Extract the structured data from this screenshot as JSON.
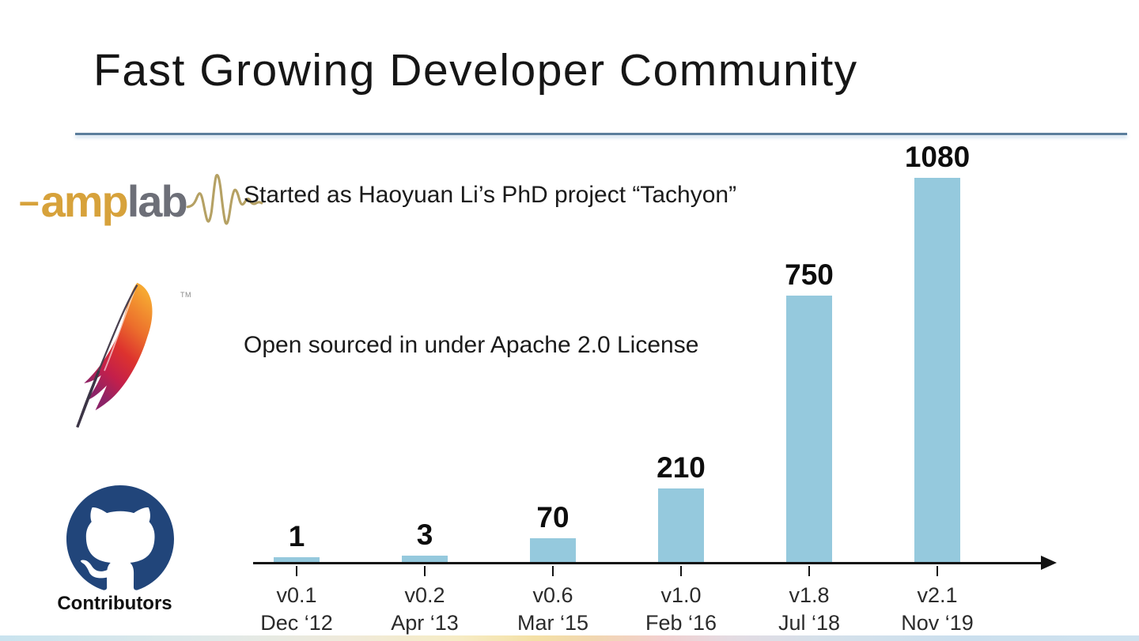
{
  "slide": {
    "title": "Fast Growing Developer Community",
    "points": [
      {
        "text": "Started as Haoyuan Li’s PhD project “Tachyon”"
      },
      {
        "text": "Open sourced in under Apache 2.0 License"
      }
    ],
    "contributors_label": "Contributors"
  },
  "logos": {
    "amplab": {
      "dash": "–",
      "amp": "amp",
      "lab": "lab"
    },
    "apache_tm": "TM"
  },
  "colors": {
    "bar": "#95c9dd",
    "divider": "#5b7e9c",
    "amp_gold": "#d7a23b",
    "lab_gray": "#6d6f78",
    "wave_gold": "#b5a164",
    "github_navy": "#21457a",
    "axis": "#131313"
  },
  "chart_data": {
    "type": "bar",
    "categories": [
      "v0.1",
      "v0.2",
      "v0.6",
      "v1.0",
      "v1.8",
      "v2.1"
    ],
    "category_sublabels": [
      "Dec ‘12",
      "Apr ‘13",
      "Mar ‘15",
      "Feb ‘16",
      "Jul ‘18",
      "Nov ‘19"
    ],
    "values": [
      1,
      3,
      70,
      210,
      750,
      1080
    ],
    "series_label": "Contributors",
    "bar_color": "#95c9dd",
    "value_labels_shown": true,
    "xlabel": "",
    "ylabel": "",
    "grid": false,
    "legend": "none",
    "axis_style": "x-axis-arrow-only"
  }
}
